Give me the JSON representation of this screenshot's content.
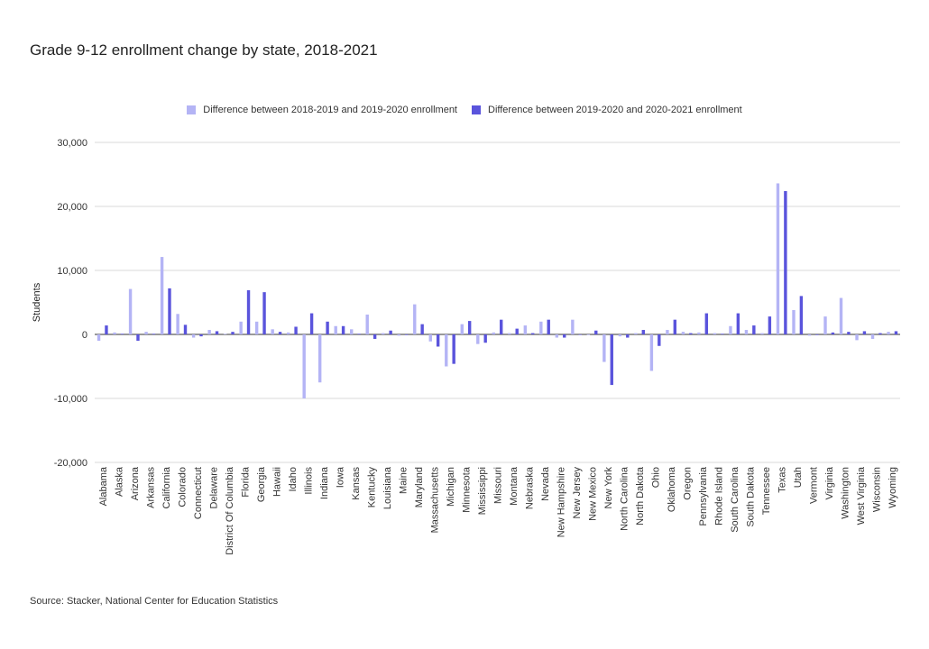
{
  "chart_data": {
    "type": "bar",
    "title": "Grade 9-12 enrollment change by state, 2018-2021",
    "xlabel": "",
    "ylabel": "Students",
    "ylim": [
      -20000,
      30000
    ],
    "yticks": [
      30000,
      20000,
      10000,
      0,
      -10000,
      -20000
    ],
    "ytick_labels": [
      "30,000",
      "20,000",
      "10,000",
      "0",
      "-10,000",
      "-20,000"
    ],
    "grid": true,
    "legend_position": "top",
    "source": "Source: Stacker, National Center for Education Statistics",
    "categories": [
      "Alabama",
      "Alaska",
      "Arizona",
      "Arkansas",
      "California",
      "Colorado",
      "Connecticut",
      "Delaware",
      "District Of Columbia",
      "Florida",
      "Georgia",
      "Hawaii",
      "Idaho",
      "Illinois",
      "Indiana",
      "Iowa",
      "Kansas",
      "Kentucky",
      "Louisiana",
      "Maine",
      "Maryland",
      "Massachusetts",
      "Michigan",
      "Minnesota",
      "Mississippi",
      "Missouri",
      "Montana",
      "Nebraska",
      "Nevada",
      "New Hampshire",
      "New Jersey",
      "New Mexico",
      "New York",
      "North Carolina",
      "North Dakota",
      "Ohio",
      "Oklahoma",
      "Oregon",
      "Pennsylvania",
      "Rhode Island",
      "South Carolina",
      "South Dakota",
      "Tennessee",
      "Texas",
      "Utah",
      "Vermont",
      "Virginia",
      "Washington",
      "West Virginia",
      "Wisconsin",
      "Wyoming"
    ],
    "series": [
      {
        "name": "Difference between 2018-2019 and 2019-2020 enrollment",
        "color": "#b4b4f5",
        "values": [
          -1000,
          300,
          7100,
          400,
          12100,
          3200,
          -500,
          700,
          100,
          2000,
          2000,
          800,
          300,
          -10000,
          -7500,
          1300,
          800,
          3100,
          200,
          -200,
          4700,
          -1100,
          -5000,
          1600,
          -1500,
          300,
          200,
          1400,
          2000,
          -500,
          2300,
          -100,
          -4300,
          -300,
          200,
          -5700,
          700,
          400,
          300,
          200,
          1300,
          700,
          200,
          23600,
          3800,
          -200,
          2800,
          5700,
          -900,
          -700,
          400
        ]
      },
      {
        "name": "Difference between 2019-2020 and 2020-2021 enrollment",
        "color": "#5a54dc",
        "values": [
          1400,
          100,
          -1000,
          100,
          7200,
          1500,
          -300,
          500,
          400,
          6900,
          6600,
          400,
          1200,
          3300,
          2000,
          1300,
          100,
          -700,
          600,
          -100,
          1600,
          -1900,
          -4600,
          2100,
          -1300,
          2300,
          900,
          200,
          2300,
          -500,
          0,
          600,
          -7900,
          -500,
          700,
          -1800,
          2300,
          200,
          3300,
          100,
          3300,
          1400,
          2800,
          22400,
          6000,
          -100,
          300,
          400,
          500,
          200,
          500
        ]
      }
    ]
  }
}
